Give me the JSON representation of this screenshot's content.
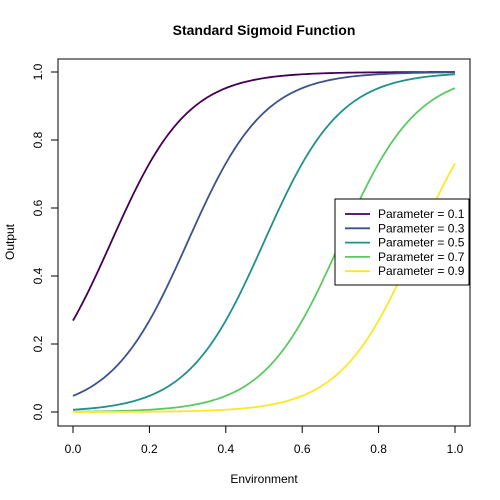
{
  "chart_data": {
    "type": "line",
    "title": "Standard Sigmoid Function",
    "xlabel": "Environment",
    "ylabel": "Output",
    "xlim": [
      0,
      1
    ],
    "ylim": [
      0,
      1
    ],
    "x_ticks": [
      "0.0",
      "0.2",
      "0.4",
      "0.6",
      "0.8",
      "1.0"
    ],
    "y_ticks": [
      "0.0",
      "0.2",
      "0.4",
      "0.6",
      "0.8",
      "1.0"
    ],
    "legend_position": "right",
    "steepness": 10,
    "series": [
      {
        "name": "Parameter = 0.1",
        "midpoint": 0.1,
        "color": "#440154"
      },
      {
        "name": "Parameter = 0.3",
        "midpoint": 0.3,
        "color": "#3B528B"
      },
      {
        "name": "Parameter = 0.5",
        "midpoint": 0.5,
        "color": "#21908C"
      },
      {
        "name": "Parameter = 0.7",
        "midpoint": 0.7,
        "color": "#5DC863"
      },
      {
        "name": "Parameter = 0.9",
        "midpoint": 0.9,
        "color": "#FDE725"
      }
    ]
  }
}
